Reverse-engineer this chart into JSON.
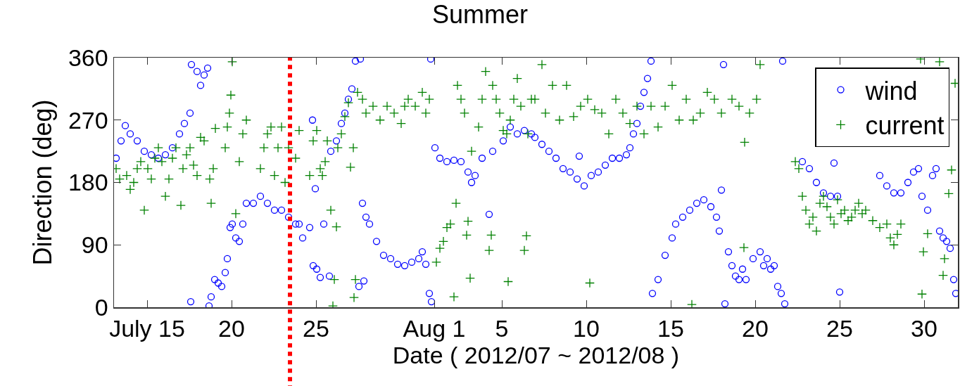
{
  "chart_data": {
    "type": "scatter",
    "title": "Summer",
    "xlabel": "Date ( 2012/07 ~ 2012/08 )",
    "ylabel": "Direction (deg)",
    "xlim": [
      "2012-07-13T01:00",
      "2012-09-01"
    ],
    "xticks": [
      {
        "value": "2012-07-15",
        "label": "July 15"
      },
      {
        "value": "2012-07-20",
        "label": "20"
      },
      {
        "value": "2012-07-25",
        "label": "25"
      },
      {
        "value": "2012-08-01",
        "label": "Aug 1"
      },
      {
        "value": "2012-08-05",
        "label": "5"
      },
      {
        "value": "2012-08-10",
        "label": "10"
      },
      {
        "value": "2012-08-15",
        "label": "15"
      },
      {
        "value": "2012-08-20",
        "label": "20"
      },
      {
        "value": "2012-08-25",
        "label": "25"
      },
      {
        "value": "2012-08-30",
        "label": "30"
      }
    ],
    "ylim": [
      0,
      360
    ],
    "yticks": [
      0,
      90,
      180,
      270,
      360
    ],
    "grid": false,
    "legend": "top right",
    "ref_lines": [
      {
        "axis": "x",
        "value": "2012-07-23T11:00",
        "color": "#ff0000",
        "line_style": "dotted"
      }
    ],
    "series": [
      {
        "name": "wind",
        "color": "#0000ff",
        "marker": "circle",
        "x": [
          "2012-07-13T04:00",
          "2012-07-13T11:00",
          "2012-07-13T17:00",
          "2012-07-14T00:00",
          "2012-07-14T10:00",
          "2012-07-14T20:00",
          "2012-07-15T06:00",
          "2012-07-15T16:00",
          "2012-07-16T02:00",
          "2012-07-16T12:00",
          "2012-07-16T22:00",
          "2012-07-17T05:00",
          "2012-07-17T13:00",
          "2012-07-17T14:00",
          "2012-07-17T15:00",
          "2012-07-17T23:00",
          "2012-07-18T04:00",
          "2012-07-18T09:00",
          "2012-07-18T14:00",
          "2012-07-18T16:00",
          "2012-07-18T19:00",
          "2012-07-19T00:00",
          "2012-07-19T05:00",
          "2012-07-19T10:00",
          "2012-07-19T15:00",
          "2012-07-19T18:00",
          "2012-07-19T22:00",
          "2012-07-20T01:00",
          "2012-07-20T06:00",
          "2012-07-20T11:00",
          "2012-07-20T16:00",
          "2012-07-20T21:00",
          "2012-07-21T07:00",
          "2012-07-21T17:00",
          "2012-07-22T03:00",
          "2012-07-22T13:00",
          "2012-07-22T23:00",
          "2012-07-23T09:00",
          "2012-07-23T19:00",
          "2012-07-24T00:00",
          "2012-07-24T05:00",
          "2012-07-24T15:00",
          "2012-07-24T19:00",
          "2012-07-24T20:00",
          "2012-07-24T23:00",
          "2012-07-25T01:00",
          "2012-07-25T06:00",
          "2012-07-25T11:00",
          "2012-07-25T19:00",
          "2012-07-25T21:00",
          "2012-07-26T05:00",
          "2012-07-26T12:00",
          "2012-07-26T17:00",
          "2012-07-26T22:00",
          "2012-07-27T03:00",
          "2012-07-27T08:00",
          "2012-07-27T13:00",
          "2012-07-27T15:00",
          "2012-07-27T18:00",
          "2012-07-27T20:00",
          "2012-07-27T23:00",
          "2012-07-28T04:00",
          "2012-07-28T14:00",
          "2012-07-29T00:00",
          "2012-07-29T10:00",
          "2012-07-29T20:00",
          "2012-07-30T06:00",
          "2012-07-30T16:00",
          "2012-07-31T02:00",
          "2012-07-31T07:00",
          "2012-07-31T12:00",
          "2012-07-31T17:00",
          "2012-07-31T19:00",
          "2012-07-31T20:00",
          "2012-08-01T01:00",
          "2012-08-01T08:00",
          "2012-08-01T18:00",
          "2012-08-02T04:00",
          "2012-08-02T14:00",
          "2012-08-03T00:00",
          "2012-08-03T05:00",
          "2012-08-03T10:00",
          "2012-08-03T20:00",
          "2012-08-04T06:00",
          "2012-08-04T11:00",
          "2012-08-05T02:00",
          "2012-08-05T12:00",
          "2012-08-05T22:00",
          "2012-08-06T08:00",
          "2012-08-06T18:00",
          "2012-08-06T23:00",
          "2012-08-07T09:00",
          "2012-08-07T19:00",
          "2012-08-08T05:00",
          "2012-08-08T15:00",
          "2012-08-09T01:00",
          "2012-08-09T11:00",
          "2012-08-09T14:00",
          "2012-08-09T21:00",
          "2012-08-10T07:00",
          "2012-08-10T17:00",
          "2012-08-11T03:00",
          "2012-08-11T13:00",
          "2012-08-11T23:00",
          "2012-08-12T09:00",
          "2012-08-12T14:00",
          "2012-08-12T19:00",
          "2012-08-13T00:00",
          "2012-08-13T05:00",
          "2012-08-13T10:00",
          "2012-08-13T15:00",
          "2012-08-13T20:00",
          "2012-08-13T22:00",
          "2012-08-14T06:00",
          "2012-08-14T16:00",
          "2012-08-15T02:00",
          "2012-08-15T07:00",
          "2012-08-15T17:00",
          "2012-08-16T03:00",
          "2012-08-16T13:00",
          "2012-08-16T23:00",
          "2012-08-17T09:00",
          "2012-08-17T17:00",
          "2012-08-17T21:00",
          "2012-08-18T00:00",
          "2012-08-18T03:00",
          "2012-08-18T05:00",
          "2012-08-18T10:00",
          "2012-08-18T15:00",
          "2012-08-18T20:00",
          "2012-08-19T01:00",
          "2012-08-19T06:00",
          "2012-08-19T11:00",
          "2012-08-19T21:00",
          "2012-08-20T07:00",
          "2012-08-20T12:00",
          "2012-08-20T17:00",
          "2012-08-20T22:00",
          "2012-08-21T03:00",
          "2012-08-21T08:00",
          "2012-08-21T13:00",
          "2012-08-21T15:00",
          "2012-08-21T18:00",
          "2012-08-22T19:00",
          "2012-08-23T05:00",
          "2012-08-23T15:00",
          "2012-08-24T01:00",
          "2012-08-24T11:00",
          "2012-08-24T16:00",
          "2012-08-24T21:00",
          "2012-08-25T00:00",
          "2012-08-27T09:00",
          "2012-08-27T19:00",
          "2012-08-28T05:00",
          "2012-08-28T15:00",
          "2012-08-29T01:00",
          "2012-08-29T09:00",
          "2012-08-29T16:00",
          "2012-08-29T21:00",
          "2012-08-30T05:00",
          "2012-08-30T12:00",
          "2012-08-30T17:00",
          "2012-08-30T22:00",
          "2012-08-31T03:00",
          "2012-08-31T08:00",
          "2012-08-31T13:00",
          "2012-08-31T18:00",
          "2012-08-31T21:00"
        ],
        "values": [
          215,
          240,
          262,
          250,
          240,
          225,
          220,
          215,
          220,
          230,
          250,
          265,
          280,
          8,
          350,
          340,
          320,
          335,
          345,
          2,
          15,
          40,
          35,
          30,
          50,
          70,
          115,
          120,
          100,
          95,
          120,
          150,
          150,
          160,
          150,
          140,
          140,
          130,
          120,
          120,
          100,
          115,
          270,
          60,
          171,
          55,
          43,
          120,
          45,
          225,
          240,
          265,
          280,
          300,
          315,
          355,
          30,
          358,
          150,
          38,
          130,
          120,
          95,
          75,
          70,
          62,
          60,
          65,
          70,
          80,
          62,
          20,
          358,
          8,
          230,
          215,
          210,
          212,
          210,
          195,
          180,
          190,
          215,
          134,
          225,
          240,
          260,
          250,
          255,
          250,
          245,
          235,
          225,
          215,
          200,
          195,
          185,
          218,
          175,
          190,
          195,
          205,
          215,
          215,
          220,
          230,
          250,
          265,
          290,
          310,
          330,
          355,
          20,
          40,
          75,
          100,
          120,
          130,
          140,
          150,
          155,
          145,
          130,
          110,
          169,
          350,
          5,
          80,
          60,
          45,
          40,
          55,
          40,
          70,
          80,
          60,
          70,
          55,
          60,
          30,
          20,
          355,
          5,
          210,
          200,
          180,
          165,
          160,
          208,
          160,
          22,
          190,
          175,
          165,
          165,
          180,
          195,
          200,
          160,
          140,
          190,
          200,
          110,
          100,
          95,
          85,
          40,
          20
        ]
      },
      {
        "name": "current",
        "color": "#008000",
        "marker": "cross",
        "x": [
          "2012-07-13T04:00",
          "2012-07-13T09:00",
          "2012-07-13T19:00",
          "2012-07-14T00:00",
          "2012-07-14T05:00",
          "2012-07-14T10:00",
          "2012-07-14T15:00",
          "2012-07-14T20:00",
          "2012-07-15T01:00",
          "2012-07-15T06:00",
          "2012-07-15T11:00",
          "2012-07-15T16:00",
          "2012-07-15T21:00",
          "2012-07-16T02:00",
          "2012-07-16T07:00",
          "2012-07-16T12:00",
          "2012-07-16T17:00",
          "2012-07-17T00:00",
          "2012-07-17T03:00",
          "2012-07-17T08:00",
          "2012-07-17T13:00",
          "2012-07-17T18:00",
          "2012-07-17T23:00",
          "2012-07-18T04:00",
          "2012-07-18T09:00",
          "2012-07-18T17:00",
          "2012-07-18T19:00",
          "2012-07-18T22:00",
          "2012-07-19T01:00",
          "2012-07-19T15:00",
          "2012-07-19T18:00",
          "2012-07-19T21:00",
          "2012-07-19T23:00",
          "2012-07-20T01:00",
          "2012-07-20T06:00",
          "2012-07-20T11:00",
          "2012-07-20T16:00",
          "2012-07-20T21:00",
          "2012-07-21T17:00",
          "2012-07-21T22:00",
          "2012-07-22T03:00",
          "2012-07-22T08:00",
          "2012-07-22T13:00",
          "2012-07-22T18:00",
          "2012-07-22T23:00",
          "2012-07-23T04:00",
          "2012-07-23T09:00",
          "2012-07-23T19:00",
          "2012-07-24T00:00",
          "2012-07-24T15:00",
          "2012-07-24T20:00",
          "2012-07-25T01:00",
          "2012-07-25T06:00",
          "2012-07-25T09:00",
          "2012-07-25T13:00",
          "2012-07-25T16:00",
          "2012-07-25T21:00",
          "2012-07-26T00:00",
          "2012-07-26T02:00",
          "2012-07-26T05:00",
          "2012-07-26T07:00",
          "2012-07-26T12:00",
          "2012-07-26T17:00",
          "2012-07-26T22:00",
          "2012-07-27T01:00",
          "2012-07-27T05:00",
          "2012-07-27T06:00",
          "2012-07-27T08:00",
          "2012-07-27T11:00",
          "2012-07-27T18:00",
          "2012-07-27T23:00",
          "2012-07-28T09:00",
          "2012-07-28T19:00",
          "2012-07-29T05:00",
          "2012-07-29T15:00",
          "2012-07-30T01:00",
          "2012-07-30T06:00",
          "2012-07-30T11:00",
          "2012-07-30T21:00",
          "2012-07-31T07:00",
          "2012-07-31T12:00",
          "2012-07-31T17:00",
          "2012-08-01T03:00",
          "2012-08-01T08:00",
          "2012-08-01T13:00",
          "2012-08-01T18:00",
          "2012-08-01T23:00",
          "2012-08-02T04:00",
          "2012-08-02T07:00",
          "2012-08-02T09:00",
          "2012-08-02T14:00",
          "2012-08-02T19:00",
          "2012-08-02T22:00",
          "2012-08-03T00:00",
          "2012-08-03T03:00",
          "2012-08-03T05:00",
          "2012-08-03T15:00",
          "2012-08-03T20:00",
          "2012-08-04T01:00",
          "2012-08-04T06:00",
          "2012-08-04T09:00",
          "2012-08-04T11:00",
          "2012-08-04T16:00",
          "2012-08-04T21:00",
          "2012-08-05T02:00",
          "2012-08-05T07:00",
          "2012-08-05T09:00",
          "2012-08-05T12:00",
          "2012-08-05T17:00",
          "2012-08-05T22:00",
          "2012-08-06T03:00",
          "2012-08-06T08:00",
          "2012-08-06T11:00",
          "2012-08-06T13:00",
          "2012-08-06T18:00",
          "2012-08-06T23:00",
          "2012-08-07T09:00",
          "2012-08-07T14:00",
          "2012-08-08T00:00",
          "2012-08-08T10:00",
          "2012-08-08T20:00",
          "2012-08-09T06:00",
          "2012-08-09T16:00",
          "2012-08-10T02:00",
          "2012-08-10T05:00",
          "2012-08-10T12:00",
          "2012-08-10T22:00",
          "2012-08-11T08:00",
          "2012-08-11T18:00",
          "2012-08-12T04:00",
          "2012-08-12T14:00",
          "2012-08-13T00:00",
          "2012-08-13T10:00",
          "2012-08-13T20:00",
          "2012-08-14T06:00",
          "2012-08-14T16:00",
          "2012-08-15T02:00",
          "2012-08-15T12:00",
          "2012-08-15T22:00",
          "2012-08-16T06:00",
          "2012-08-16T08:00",
          "2012-08-16T18:00",
          "2012-08-17T04:00",
          "2012-08-17T14:00",
          "2012-08-18T00:00",
          "2012-08-18T15:00",
          "2012-08-19T01:00",
          "2012-08-19T08:00",
          "2012-08-19T09:00",
          "2012-08-19T16:00",
          "2012-08-20T02:00",
          "2012-08-20T07:00",
          "2012-08-22T09:00",
          "2012-08-22T14:00",
          "2012-08-22T19:00",
          "2012-08-23T00:00",
          "2012-08-23T05:00",
          "2012-08-23T10:00",
          "2012-08-23T15:00",
          "2012-08-23T20:00",
          "2012-08-24T01:00",
          "2012-08-24T06:00",
          "2012-08-24T11:00",
          "2012-08-24T16:00",
          "2012-08-24T21:00",
          "2012-08-25T02:00",
          "2012-08-25T07:00",
          "2012-08-25T12:00",
          "2012-08-25T17:00",
          "2012-08-25T22:00",
          "2012-08-26T03:00",
          "2012-08-26T08:00",
          "2012-08-26T13:00",
          "2012-08-26T23:00",
          "2012-08-27T09:00",
          "2012-08-27T19:00",
          "2012-08-28T00:00",
          "2012-08-28T05:00",
          "2012-08-28T10:00",
          "2012-08-28T15:00",
          "2012-08-29T19:00",
          "2012-08-29T21:00",
          "2012-08-29T23:00",
          "2012-08-30T05:00",
          "2012-08-30T22:00",
          "2012-08-31T03:00",
          "2012-08-31T05:00",
          "2012-08-31T11:00",
          "2012-08-31T15:00",
          "2012-08-31T20:00"
        ],
        "values": [
          200,
          185,
          190,
          170,
          180,
          200,
          210,
          140,
          200,
          185,
          215,
          230,
          210,
          160,
          185,
          215,
          230,
          147,
          200,
          220,
          230,
          205,
          190,
          245,
          240,
          185,
          150,
          200,
          258,
          230,
          260,
          280,
          306,
          354,
          135,
          210,
          250,
          270,
          200,
          230,
          250,
          260,
          190,
          230,
          260,
          180,
          230,
          215,
          255,
          190,
          240,
          255,
          200,
          190,
          210,
          240,
          140,
          2,
          40,
          116,
          230,
          250,
          275,
          295,
          202,
          230,
          14,
          40,
          310,
          300,
          280,
          290,
          270,
          290,
          280,
          265,
          290,
          300,
          290,
          310,
          280,
          300,
          65,
          85,
          95,
          115,
          120,
          15,
          150,
          320,
          300,
          280,
          104,
          124,
          42,
          225,
          260,
          300,
          340,
          82,
          104,
          320,
          300,
          280,
          255,
          250,
          37,
          270,
          300,
          330,
          290,
          82,
          103,
          250,
          300,
          300,
          350,
          280,
          320,
          270,
          320,
          275,
          290,
          300,
          35,
          285,
          280,
          250,
          300,
          280,
          265,
          290,
          250,
          290,
          260,
          290,
          320,
          270,
          300,
          4,
          270,
          280,
          310,
          300,
          280,
          300,
          290,
          86,
          238,
          280,
          300,
          350,
          210,
          200,
          160,
          140,
          120,
          130,
          110,
          150,
          160,
          145,
          130,
          120,
          155,
          135,
          140,
          125,
          130,
          140,
          150,
          135,
          140,
          125,
          115,
          120,
          100,
          90,
          105,
          120,
          358,
          19,
          80,
          106,
          354,
          46,
          70,
          164,
          198,
          323
        ]
      }
    ]
  }
}
